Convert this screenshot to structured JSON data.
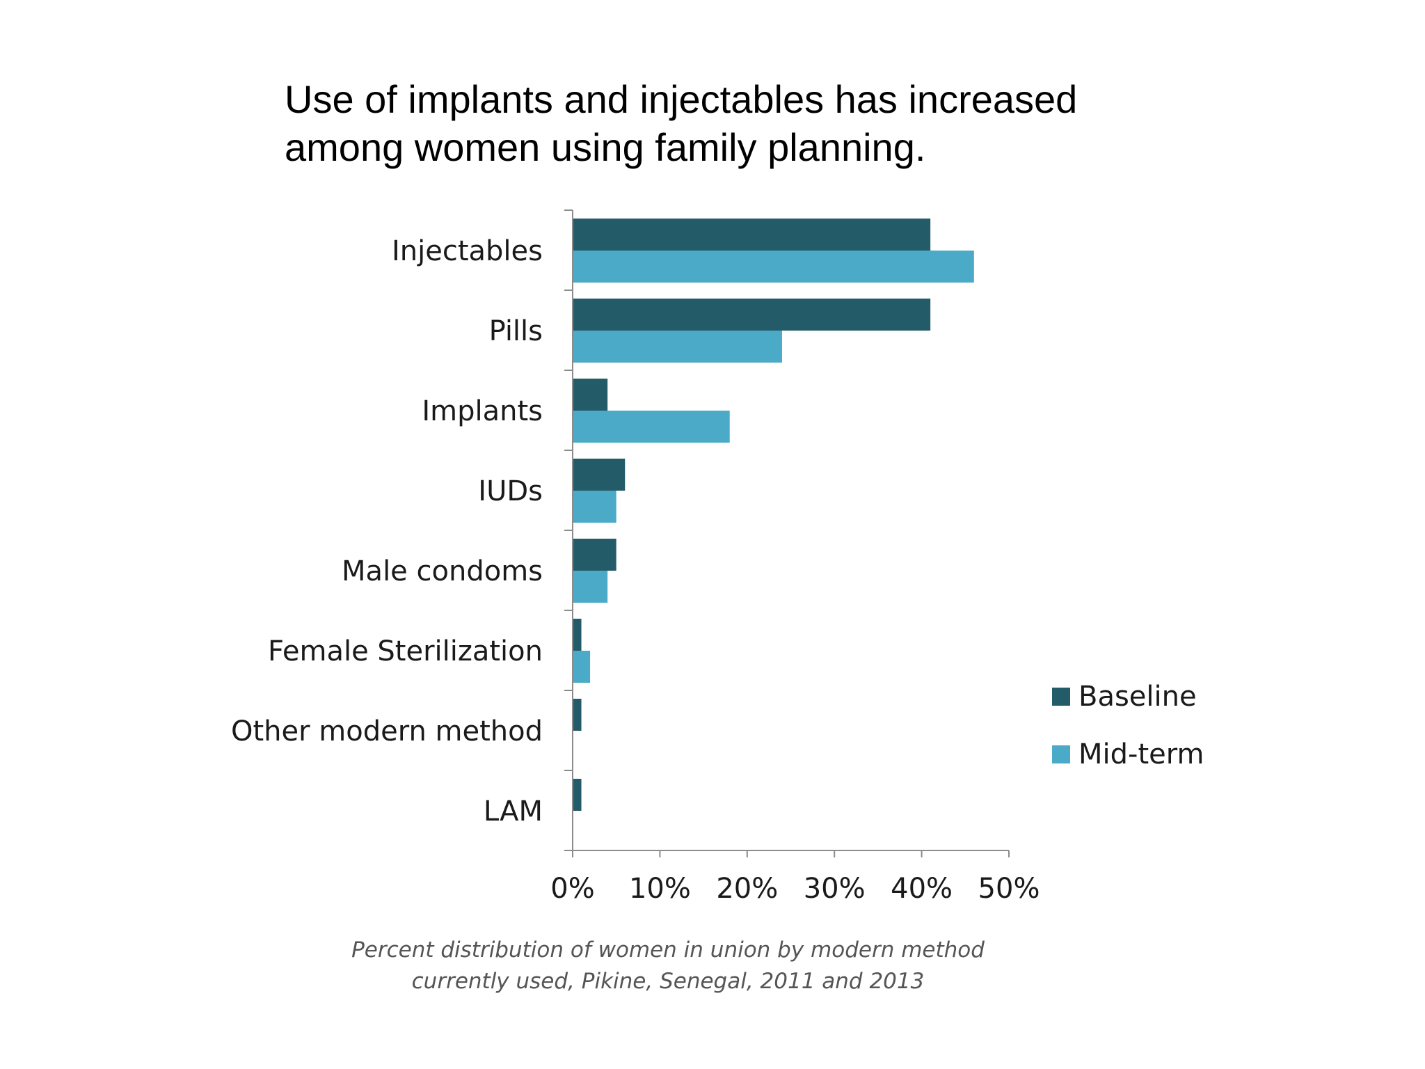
{
  "headline": {
    "line1": "Use of implants and injectables has increased",
    "line2": "among women using family planning."
  },
  "caption": {
    "line1": "Percent distribution of women in union by modern method",
    "line2": "currently used, Pikine, Senegal, 2011 and 2013"
  },
  "colors": {
    "baseline": "#235b68",
    "midterm": "#4aaac7",
    "axis": "#8c8c8c"
  },
  "chart_data": {
    "type": "bar",
    "orientation": "horizontal",
    "title": "",
    "xlabel": "",
    "ylabel": "",
    "categories": [
      "Injectables",
      "Pills",
      "Implants",
      "IUDs",
      "Male condoms",
      "Female Sterilization",
      "Other modern method",
      "LAM"
    ],
    "series": [
      {
        "name": "Baseline",
        "values": [
          41,
          41,
          4,
          6,
          5,
          1,
          1,
          1
        ]
      },
      {
        "name": "Mid-term",
        "values": [
          46,
          24,
          18,
          5,
          4,
          2,
          0,
          0
        ]
      }
    ],
    "xlim": [
      0,
      50
    ],
    "xticks": [
      "0%",
      "10%",
      "20%",
      "30%",
      "40%",
      "50%"
    ],
    "grid": false,
    "legend": "right"
  }
}
